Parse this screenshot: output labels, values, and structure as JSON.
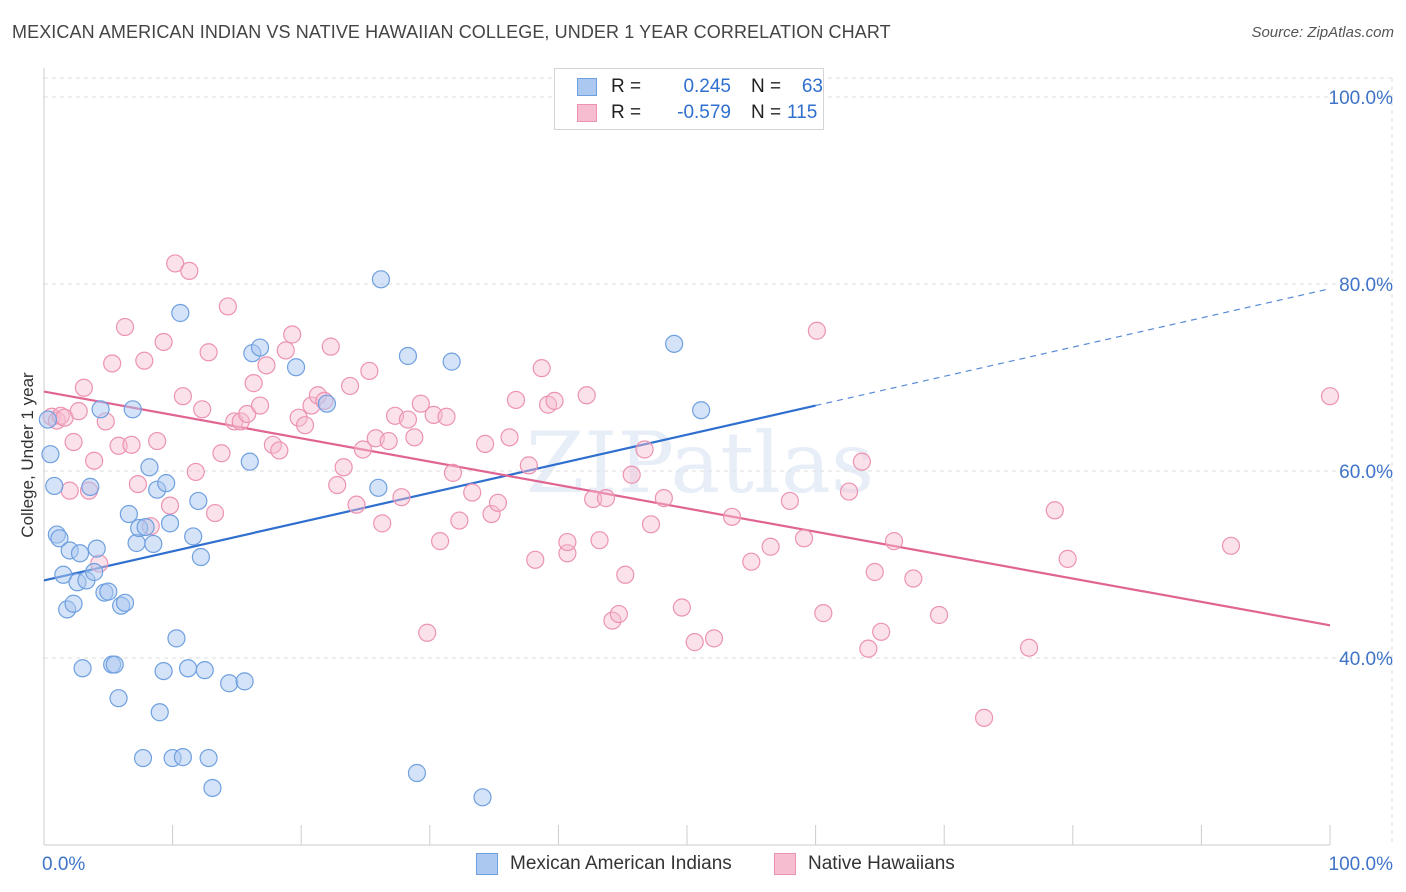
{
  "title": "MEXICAN AMERICAN INDIAN VS NATIVE HAWAIIAN COLLEGE, UNDER 1 YEAR CORRELATION CHART",
  "source": "Source: ZipAtlas.com",
  "legend": {
    "rows": [
      {
        "r_label": "R =",
        "r_value": "0.245",
        "n_label": "N =",
        "n_value": "63"
      },
      {
        "r_label": "R =",
        "r_value": "-0.579",
        "n_label": "N =",
        "n_value": "115"
      }
    ]
  },
  "bottom_legend": [
    "Mexican American Indians",
    "Native Hawaiians"
  ],
  "colors": {
    "blue_fill": "#aac8f0",
    "blue_stroke": "#6fa0e0",
    "blue_line": "#2f6fce",
    "pink_fill": "#f6bcd0",
    "pink_stroke": "#ec93b2",
    "pink_line": "#e06592",
    "axis_text": "#3f74c8",
    "grid": "#dddddd"
  },
  "chart_data": {
    "type": "scatter",
    "title": "MEXICAN AMERICAN INDIAN VS NATIVE HAWAIIAN COLLEGE, UNDER 1 YEAR CORRELATION CHART",
    "xlabel": "",
    "ylabel": "College, Under 1 year",
    "xlim": [
      0,
      100
    ],
    "ylim": [
      20,
      100
    ],
    "x_tick_labels": [
      "0.0%",
      "100.0%"
    ],
    "y_ticks": [
      40,
      60,
      80,
      100
    ],
    "y_tick_labels": [
      "40.0%",
      "60.0%",
      "80.0%",
      "100.0%"
    ],
    "grid": true,
    "legend_position": "top-center",
    "watermark": "ZIPatlas",
    "series": [
      {
        "name": "Mexican American Indians",
        "R": 0.245,
        "N": 63,
        "trend": {
          "x0": 0,
          "y0": 48.3,
          "x1": 60,
          "y1": 67.0,
          "dashed_to_x": 100,
          "dashed_to_y": 79.5
        },
        "points": [
          [
            0.3,
            65.5
          ],
          [
            0.5,
            61.8
          ],
          [
            0.8,
            58.4
          ],
          [
            1.0,
            53.2
          ],
          [
            1.2,
            52.8
          ],
          [
            1.5,
            48.9
          ],
          [
            1.8,
            45.2
          ],
          [
            2.0,
            51.5
          ],
          [
            2.3,
            45.8
          ],
          [
            2.6,
            48.1
          ],
          [
            2.8,
            51.2
          ],
          [
            3.0,
            38.9
          ],
          [
            3.3,
            48.3
          ],
          [
            3.6,
            58.3
          ],
          [
            3.9,
            49.2
          ],
          [
            4.1,
            51.7
          ],
          [
            4.4,
            66.6
          ],
          [
            4.7,
            47.0
          ],
          [
            5.0,
            47.1
          ],
          [
            5.3,
            39.3
          ],
          [
            5.5,
            39.3
          ],
          [
            5.8,
            35.7
          ],
          [
            6.0,
            45.6
          ],
          [
            6.3,
            45.9
          ],
          [
            6.6,
            55.4
          ],
          [
            6.9,
            66.6
          ],
          [
            7.2,
            52.3
          ],
          [
            7.4,
            53.9
          ],
          [
            7.7,
            29.3
          ],
          [
            7.9,
            54.0
          ],
          [
            8.2,
            60.4
          ],
          [
            8.5,
            52.2
          ],
          [
            8.8,
            58.0
          ],
          [
            9.0,
            34.2
          ],
          [
            9.3,
            38.6
          ],
          [
            9.5,
            58.7
          ],
          [
            9.8,
            54.4
          ],
          [
            10.0,
            29.3
          ],
          [
            10.3,
            42.1
          ],
          [
            10.6,
            76.9
          ],
          [
            10.8,
            29.4
          ],
          [
            11.2,
            38.9
          ],
          [
            11.6,
            53.0
          ],
          [
            12.0,
            56.8
          ],
          [
            12.2,
            50.8
          ],
          [
            12.5,
            38.7
          ],
          [
            12.8,
            29.3
          ],
          [
            13.1,
            26.1
          ],
          [
            14.4,
            37.3
          ],
          [
            15.6,
            37.5
          ],
          [
            16.0,
            61.0
          ],
          [
            16.2,
            72.6
          ],
          [
            16.8,
            73.2
          ],
          [
            19.6,
            71.1
          ],
          [
            22.0,
            67.2
          ],
          [
            26.0,
            58.2
          ],
          [
            26.2,
            80.5
          ],
          [
            28.3,
            72.3
          ],
          [
            29.0,
            27.7
          ],
          [
            31.7,
            71.7
          ],
          [
            34.1,
            25.1
          ],
          [
            49.0,
            73.6
          ],
          [
            51.1,
            66.5
          ]
        ]
      },
      {
        "name": "Native Hawaiians",
        "R": -0.579,
        "N": 115,
        "trend": {
          "x0": 0,
          "y0": 68.5,
          "x1": 100,
          "y1": 43.5
        },
        "points": [
          [
            0.6,
            65.8
          ],
          [
            1.0,
            65.4
          ],
          [
            1.3,
            65.9
          ],
          [
            1.6,
            65.7
          ],
          [
            2.0,
            57.9
          ],
          [
            2.3,
            63.1
          ],
          [
            2.7,
            66.4
          ],
          [
            3.1,
            68.9
          ],
          [
            3.5,
            57.9
          ],
          [
            3.9,
            61.1
          ],
          [
            4.3,
            50.1
          ],
          [
            4.8,
            65.3
          ],
          [
            5.3,
            71.5
          ],
          [
            5.8,
            62.7
          ],
          [
            6.3,
            75.4
          ],
          [
            6.8,
            62.8
          ],
          [
            7.3,
            58.6
          ],
          [
            7.8,
            71.8
          ],
          [
            8.3,
            54.1
          ],
          [
            8.8,
            63.2
          ],
          [
            9.3,
            73.8
          ],
          [
            9.8,
            56.3
          ],
          [
            10.2,
            82.2
          ],
          [
            10.8,
            68.0
          ],
          [
            11.3,
            81.4
          ],
          [
            11.8,
            59.9
          ],
          [
            12.3,
            66.6
          ],
          [
            12.8,
            72.7
          ],
          [
            13.3,
            55.5
          ],
          [
            13.8,
            61.9
          ],
          [
            14.3,
            77.6
          ],
          [
            14.8,
            65.3
          ],
          [
            15.3,
            65.3
          ],
          [
            15.8,
            66.1
          ],
          [
            16.3,
            69.4
          ],
          [
            16.8,
            67.0
          ],
          [
            17.3,
            71.3
          ],
          [
            17.8,
            62.8
          ],
          [
            18.3,
            62.2
          ],
          [
            18.8,
            72.9
          ],
          [
            19.3,
            74.6
          ],
          [
            19.8,
            65.7
          ],
          [
            20.3,
            64.9
          ],
          [
            20.8,
            67.0
          ],
          [
            21.3,
            68.1
          ],
          [
            21.8,
            67.5
          ],
          [
            22.3,
            73.3
          ],
          [
            22.8,
            58.5
          ],
          [
            23.3,
            60.4
          ],
          [
            23.8,
            69.1
          ],
          [
            24.3,
            56.4
          ],
          [
            24.8,
            62.3
          ],
          [
            25.3,
            70.7
          ],
          [
            25.8,
            63.5
          ],
          [
            26.3,
            54.4
          ],
          [
            26.8,
            63.2
          ],
          [
            27.3,
            65.9
          ],
          [
            27.8,
            57.2
          ],
          [
            28.3,
            65.5
          ],
          [
            28.8,
            63.6
          ],
          [
            29.3,
            67.2
          ],
          [
            29.8,
            42.7
          ],
          [
            30.3,
            66.0
          ],
          [
            30.8,
            52.5
          ],
          [
            31.3,
            65.8
          ],
          [
            31.8,
            59.8
          ],
          [
            32.3,
            54.7
          ],
          [
            33.3,
            57.7
          ],
          [
            34.3,
            62.9
          ],
          [
            34.8,
            55.4
          ],
          [
            35.3,
            56.6
          ],
          [
            36.2,
            63.6
          ],
          [
            36.7,
            67.6
          ],
          [
            37.7,
            60.6
          ],
          [
            38.2,
            50.5
          ],
          [
            38.7,
            71.0
          ],
          [
            39.2,
            67.1
          ],
          [
            39.7,
            67.5
          ],
          [
            40.7,
            51.2
          ],
          [
            40.7,
            52.4
          ],
          [
            42.2,
            68.1
          ],
          [
            42.7,
            57.0
          ],
          [
            43.2,
            52.6
          ],
          [
            43.7,
            57.1
          ],
          [
            44.2,
            44.0
          ],
          [
            44.7,
            44.7
          ],
          [
            45.2,
            48.9
          ],
          [
            45.7,
            59.6
          ],
          [
            46.7,
            62.3
          ],
          [
            47.2,
            54.3
          ],
          [
            48.2,
            57.1
          ],
          [
            49.6,
            45.4
          ],
          [
            50.6,
            41.7
          ],
          [
            52.1,
            42.1
          ],
          [
            53.5,
            55.1
          ],
          [
            55.0,
            50.3
          ],
          [
            56.5,
            51.9
          ],
          [
            58.0,
            56.8
          ],
          [
            59.1,
            52.8
          ],
          [
            60.1,
            75.0
          ],
          [
            60.6,
            44.8
          ],
          [
            62.6,
            57.8
          ],
          [
            63.6,
            61.0
          ],
          [
            64.1,
            41.0
          ],
          [
            64.6,
            49.2
          ],
          [
            65.1,
            42.8
          ],
          [
            66.1,
            52.5
          ],
          [
            67.6,
            48.5
          ],
          [
            69.6,
            44.6
          ],
          [
            73.1,
            33.6
          ],
          [
            76.6,
            41.1
          ],
          [
            78.6,
            55.8
          ],
          [
            79.6,
            50.6
          ],
          [
            92.3,
            52.0
          ],
          [
            100.0,
            68.0
          ]
        ]
      }
    ]
  }
}
